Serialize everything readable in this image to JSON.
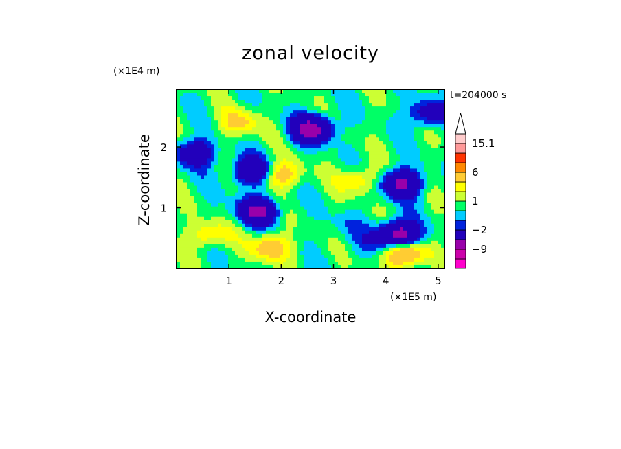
{
  "chart_data": {
    "type": "heatmap",
    "title": "zonal velocity",
    "xlabel": "X-coordinate",
    "ylabel": "Z-coordinate",
    "x_unit_label": "(×1E5 m)",
    "y_unit_label": "(×1E4 m)",
    "time_label": "t=204000 s",
    "xlim": [
      0,
      5.12
    ],
    "ylim": [
      0,
      2.95
    ],
    "x_ticks": [
      1,
      2,
      3,
      4,
      5
    ],
    "x_tick_labels": [
      "1",
      "2",
      "3",
      "4",
      "5"
    ],
    "y_ticks": [
      1,
      2
    ],
    "y_tick_labels": [
      "1",
      "2"
    ],
    "colorbar": {
      "levels": [
        -15,
        -12,
        -9,
        -6,
        -2,
        -1,
        0,
        1,
        2,
        3,
        6,
        9,
        12,
        15.1
      ],
      "colors": [
        "#ff00cc",
        "#cc00aa",
        "#9900aa",
        "#2200bb",
        "#0022dd",
        "#00ccff",
        "#00ff66",
        "#ccff33",
        "#ffff00",
        "#ffcc33",
        "#ff8800",
        "#ff3300",
        "#ff9999",
        "#ffcccc"
      ],
      "labels": [
        {
          "value": 15.1,
          "text": "15.1"
        },
        {
          "value": 6,
          "text": "6"
        },
        {
          "value": 1,
          "text": "1"
        },
        {
          "value": -2,
          "text": "−2"
        },
        {
          "value": -9,
          "text": "−9"
        }
      ],
      "extend": "max"
    },
    "features": [
      {
        "x": 2.6,
        "z": 2.3,
        "amp": -8
      },
      {
        "x": 4.3,
        "z": 1.4,
        "amp": -7
      },
      {
        "x": 1.45,
        "z": 1.6,
        "amp": -6
      },
      {
        "x": 0.35,
        "z": 1.9,
        "amp": -5
      },
      {
        "x": 1.55,
        "z": 0.95,
        "amp": -7
      },
      {
        "x": 4.25,
        "z": 0.55,
        "amp": -9
      },
      {
        "x": 2.0,
        "z": 1.55,
        "amp": 4
      },
      {
        "x": 1.2,
        "z": 2.4,
        "amp": 3
      },
      {
        "x": 3.5,
        "z": 1.45,
        "amp": 3
      },
      {
        "x": 4.35,
        "z": 0.25,
        "amp": 6
      },
      {
        "x": 1.8,
        "z": 0.35,
        "amp": 4
      },
      {
        "x": 0.6,
        "z": 0.55,
        "amp": 3
      },
      {
        "x": 3.2,
        "z": 0.7,
        "amp": -1
      },
      {
        "x": 3.6,
        "z": 0.4,
        "amp": -1
      },
      {
        "x": 4.8,
        "z": 2.55,
        "amp": -4
      }
    ]
  }
}
